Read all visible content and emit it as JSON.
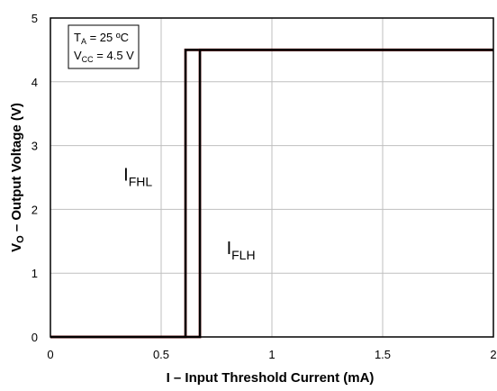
{
  "chart_data": {
    "type": "line",
    "xlabel": "I – Input Threshold Current (mA)",
    "ylabel_main": "V",
    "ylabel_sub": "O",
    "ylabel_rest": " – Output Voltage  (V)",
    "xlim": [
      0,
      2
    ],
    "ylim": [
      0,
      5
    ],
    "xticks": [
      0,
      0.5,
      1,
      1.5,
      2
    ],
    "xtick_labels": [
      "0",
      "0.5",
      "1",
      "1.5",
      "2"
    ],
    "yticks": [
      0,
      1,
      2,
      3,
      4,
      5
    ],
    "ytick_labels": [
      "0",
      "1",
      "2",
      "3",
      "4",
      "5"
    ],
    "grid": true,
    "series": [
      {
        "color": "#000000",
        "x": [
          0,
          0.61,
          0.61,
          2.0
        ],
        "y": [
          0,
          0,
          4.5,
          4.5
        ]
      },
      {
        "color": "#000000",
        "x": [
          0,
          0.675,
          0.675,
          2.0
        ],
        "y": [
          0,
          0,
          4.5,
          4.5
        ]
      }
    ],
    "accent_color": "#c00000",
    "annotations": [
      {
        "main": "I",
        "sub": "FHL",
        "x": 0.33,
        "y": 2.45
      },
      {
        "main": "I",
        "sub": "FLH",
        "x": 0.795,
        "y": 1.3
      }
    ],
    "conditions": [
      {
        "main": "T",
        "sub": "A",
        "rest": " = 25 ºC"
      },
      {
        "main": "V",
        "sub": "CC",
        "rest": " = 4.5 V"
      }
    ]
  }
}
